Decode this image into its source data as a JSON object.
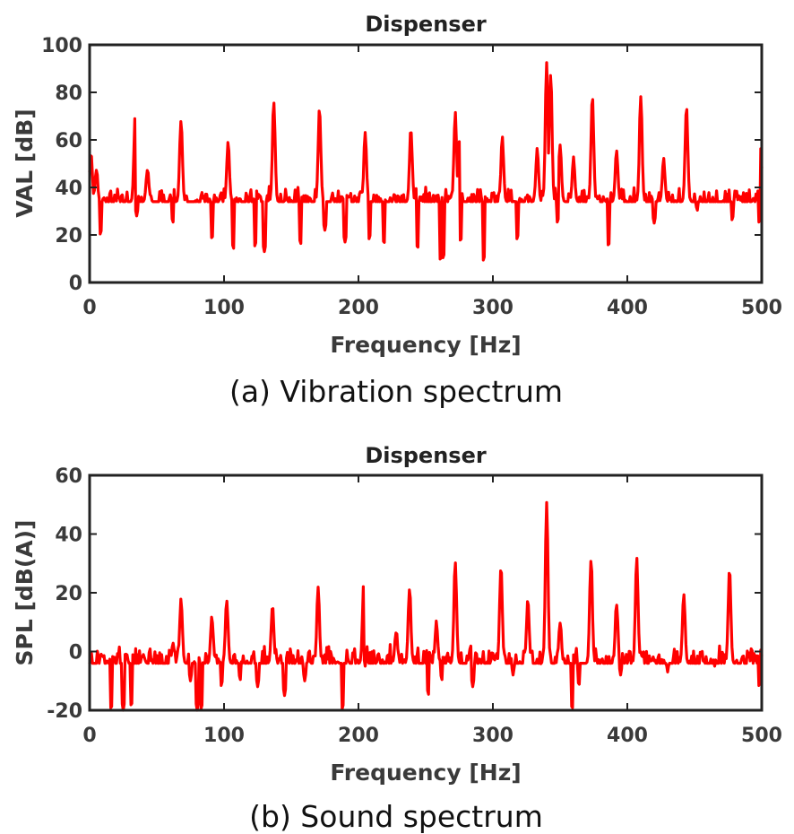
{
  "chart_data": [
    {
      "type": "line",
      "title": "Dispenser",
      "xlabel": "Frequency [Hz]",
      "ylabel": "VAL [dB]",
      "caption": "(a)  Vibration  spectrum",
      "xlim": [
        0,
        500
      ],
      "ylim": [
        0,
        100
      ],
      "xticks": [
        0,
        100,
        200,
        300,
        400,
        500
      ],
      "yticks": [
        0,
        20,
        40,
        60,
        80,
        100
      ],
      "grid": false,
      "color": "#ff0000",
      "baseline": 34,
      "floor_points": [
        [
          8,
          20
        ],
        [
          35,
          28
        ],
        [
          62,
          25
        ],
        [
          91,
          18
        ],
        [
          107,
          14
        ],
        [
          123,
          15
        ],
        [
          130,
          13
        ],
        [
          157,
          16
        ],
        [
          175,
          22
        ],
        [
          190,
          17
        ],
        [
          208,
          18
        ],
        [
          219,
          16
        ],
        [
          244,
          14
        ],
        [
          261,
          9
        ],
        [
          263,
          10
        ],
        [
          276,
          17
        ],
        [
          293,
          9
        ],
        [
          318,
          18
        ],
        [
          348,
          25
        ],
        [
          386,
          15
        ],
        [
          420,
          25
        ],
        [
          452,
          30
        ],
        [
          478,
          26
        ],
        [
          498,
          25
        ]
      ],
      "peaks": [
        {
          "x": 1,
          "y": 55
        },
        {
          "x": 5,
          "y": 48
        },
        {
          "x": 34,
          "y": 73
        },
        {
          "x": 43,
          "y": 48
        },
        {
          "x": 68,
          "y": 69
        },
        {
          "x": 103,
          "y": 59
        },
        {
          "x": 137,
          "y": 76
        },
        {
          "x": 171,
          "y": 73
        },
        {
          "x": 205,
          "y": 63
        },
        {
          "x": 239,
          "y": 65
        },
        {
          "x": 272,
          "y": 71
        },
        {
          "x": 275,
          "y": 60
        },
        {
          "x": 307,
          "y": 61
        },
        {
          "x": 333,
          "y": 56
        },
        {
          "x": 340,
          "y": 92
        },
        {
          "x": 343,
          "y": 88
        },
        {
          "x": 350,
          "y": 58
        },
        {
          "x": 360,
          "y": 52
        },
        {
          "x": 374,
          "y": 78
        },
        {
          "x": 392,
          "y": 55
        },
        {
          "x": 410,
          "y": 79
        },
        {
          "x": 427,
          "y": 52
        },
        {
          "x": 444,
          "y": 74
        },
        {
          "x": 499,
          "y": 58
        }
      ]
    },
    {
      "type": "line",
      "title": "Dispenser",
      "xlabel": "Frequency [Hz]",
      "ylabel": "SPL [dB(A)]",
      "caption": "(b)  Sound  spectrum",
      "xlim": [
        0,
        500
      ],
      "ylim": [
        -20,
        60
      ],
      "xticks": [
        0,
        100,
        200,
        300,
        400,
        500
      ],
      "yticks": [
        -20,
        0,
        20,
        40,
        60
      ],
      "grid": false,
      "color": "#ff0000",
      "baseline": -4,
      "floor_points": [
        [
          16,
          -20
        ],
        [
          25,
          -20
        ],
        [
          31,
          -19
        ],
        [
          75,
          -10
        ],
        [
          80,
          -20
        ],
        [
          83,
          -20
        ],
        [
          98,
          -12
        ],
        [
          112,
          -10
        ],
        [
          125,
          -12
        ],
        [
          145,
          -15
        ],
        [
          160,
          -10
        ],
        [
          188,
          -20
        ],
        [
          205,
          -5
        ],
        [
          252,
          -15
        ],
        [
          262,
          -10
        ],
        [
          285,
          -12
        ],
        [
          315,
          -8
        ],
        [
          336,
          -5
        ],
        [
          359,
          -20
        ],
        [
          364,
          -12
        ],
        [
          395,
          -8
        ],
        [
          430,
          -7
        ],
        [
          465,
          -5
        ],
        [
          498,
          -12
        ]
      ],
      "peaks": [
        {
          "x": 17,
          "y": -5
        },
        {
          "x": 40,
          "y": -1
        },
        {
          "x": 62,
          "y": 2
        },
        {
          "x": 68,
          "y": 18
        },
        {
          "x": 91,
          "y": 12
        },
        {
          "x": 102,
          "y": 17
        },
        {
          "x": 136,
          "y": 16
        },
        {
          "x": 170,
          "y": 21
        },
        {
          "x": 204,
          "y": 24
        },
        {
          "x": 228,
          "y": 7
        },
        {
          "x": 238,
          "y": 22
        },
        {
          "x": 258,
          "y": 10
        },
        {
          "x": 272,
          "y": 30
        },
        {
          "x": 306,
          "y": 29
        },
        {
          "x": 326,
          "y": 18
        },
        {
          "x": 340,
          "y": 50
        },
        {
          "x": 350,
          "y": 10
        },
        {
          "x": 373,
          "y": 32
        },
        {
          "x": 392,
          "y": 16
        },
        {
          "x": 407,
          "y": 32
        },
        {
          "x": 442,
          "y": 20
        },
        {
          "x": 476,
          "y": 28
        },
        {
          "x": 499,
          "y": 0
        }
      ]
    }
  ]
}
